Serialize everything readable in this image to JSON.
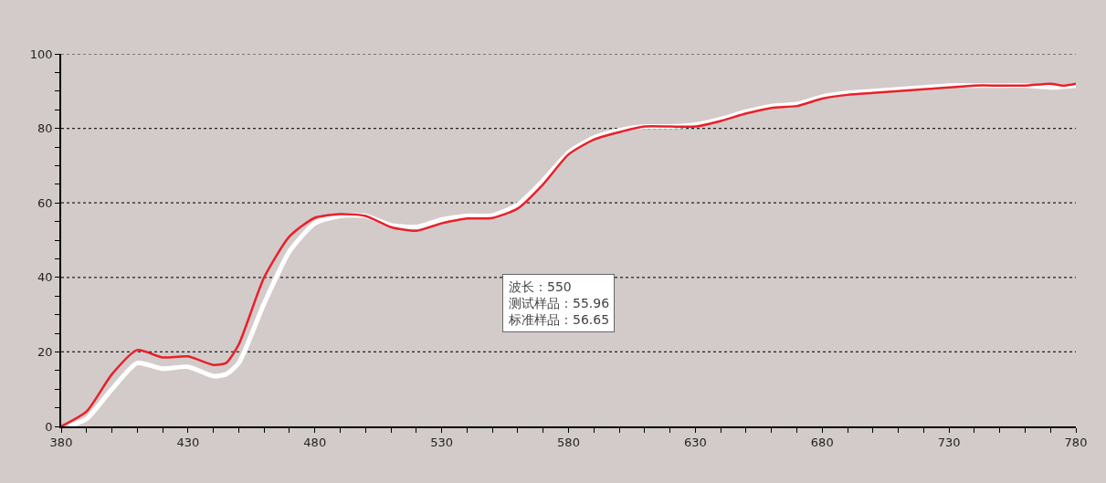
{
  "chart_data": {
    "type": "line",
    "series": [
      {
        "color": "#ffffff",
        "x": [
          383,
          390,
          400,
          410,
          420,
          430,
          440,
          445,
          450,
          460,
          470,
          480,
          490,
          500,
          510,
          520,
          530,
          540,
          550,
          560,
          570,
          580,
          590,
          600,
          610,
          620,
          630,
          640,
          650,
          660,
          670,
          680,
          690,
          700,
          710,
          720,
          730,
          740,
          750,
          760,
          770,
          780
        ],
        "values": [
          0,
          2,
          10,
          17,
          15.5,
          16,
          13.5,
          14,
          17,
          33,
          47,
          54.5,
          56.5,
          56.5,
          54,
          53.5,
          55.5,
          56.5,
          56.65,
          59.5,
          66,
          73.5,
          77.5,
          79.5,
          80.5,
          80.5,
          81,
          82.5,
          84.5,
          86,
          86.5,
          88.5,
          89.5,
          90,
          90.5,
          91,
          91.5,
          91.5,
          91.5,
          91.5,
          91,
          91.5
        ]
      },
      {
        "color": "#e8202a",
        "x": [
          380,
          390,
          400,
          410,
          420,
          430,
          440,
          445,
          450,
          460,
          470,
          480,
          490,
          500,
          510,
          520,
          530,
          540,
          550,
          560,
          570,
          580,
          590,
          600,
          610,
          620,
          630,
          640,
          650,
          660,
          670,
          680,
          690,
          700,
          710,
          720,
          730,
          740,
          750,
          760,
          770,
          775,
          780
        ],
        "values": [
          0,
          4,
          14,
          20.5,
          18.5,
          18.8,
          16.5,
          17,
          22,
          40,
          51,
          56,
          57,
          56.5,
          53.5,
          52.5,
          54.5,
          55.8,
          55.96,
          58.5,
          65,
          73,
          77,
          79,
          80.5,
          80.5,
          80.5,
          82,
          84,
          85.5,
          86,
          88,
          89,
          89.5,
          90,
          90.5,
          91,
          91.5,
          91.5,
          91.5,
          92,
          91.5,
          92
        ]
      }
    ],
    "xlim": [
      380,
      780
    ],
    "xticks": [
      380,
      {
        "value": 390,
        "label": null
      },
      {
        "value": 400,
        "label": null
      },
      {
        "value": 410,
        "label": null
      },
      {
        "value": 420,
        "label": null
      },
      430,
      {
        "value": 440,
        "label": null
      },
      {
        "value": 450,
        "label": null
      },
      {
        "value": 460,
        "label": null
      },
      {
        "value": 470,
        "label": null
      },
      480,
      {
        "value": 490,
        "label": null
      },
      {
        "value": 500,
        "label": null
      },
      {
        "value": 510,
        "label": null
      },
      {
        "value": 520,
        "label": null
      },
      530,
      {
        "value": 540,
        "label": null
      },
      {
        "value": 550,
        "label": null
      },
      {
        "value": 560,
        "label": null
      },
      {
        "value": 570,
        "label": null
      },
      580,
      {
        "value": 590,
        "label": null
      },
      {
        "value": 600,
        "label": null
      },
      {
        "value": 610,
        "label": null
      },
      {
        "value": 620,
        "label": null
      },
      630,
      {
        "value": 640,
        "label": null
      },
      {
        "value": 650,
        "label": null
      },
      {
        "value": 660,
        "label": null
      },
      {
        "value": 670,
        "label": null
      },
      680,
      {
        "value": 690,
        "label": null
      },
      {
        "value": 700,
        "label": null
      },
      {
        "value": 710,
        "label": null
      },
      {
        "value": 720,
        "label": null
      },
      730,
      {
        "value": 740,
        "label": null
      },
      {
        "value": 750,
        "label": null
      },
      {
        "value": 760,
        "label": null
      },
      {
        "value": 770,
        "label": null
      },
      780
    ],
    "ylim": [
      0,
      100
    ],
    "yticks": [
      0,
      {
        "value": 5,
        "label": null
      },
      {
        "value": 10,
        "label": null
      },
      {
        "value": 15,
        "label": null
      },
      20,
      {
        "value": 25,
        "label": null
      },
      {
        "value": 30,
        "label": null
      },
      {
        "value": 35,
        "label": null
      },
      40,
      {
        "value": 45,
        "label": null
      },
      {
        "value": 50,
        "label": null
      },
      {
        "value": 55,
        "label": null
      },
      60,
      {
        "value": 65,
        "label": null
      },
      {
        "value": 70,
        "label": null
      },
      {
        "value": 75,
        "label": null
      },
      80,
      {
        "value": 85,
        "label": null
      },
      {
        "value": 90,
        "label": null
      },
      {
        "value": 95,
        "label": null
      },
      100
    ],
    "grid": "y",
    "line_style": "solid",
    "marker": "none",
    "annotations": [
      "波长：550\n测试样品：55.96\n标准样品：56.65"
    ]
  }
}
